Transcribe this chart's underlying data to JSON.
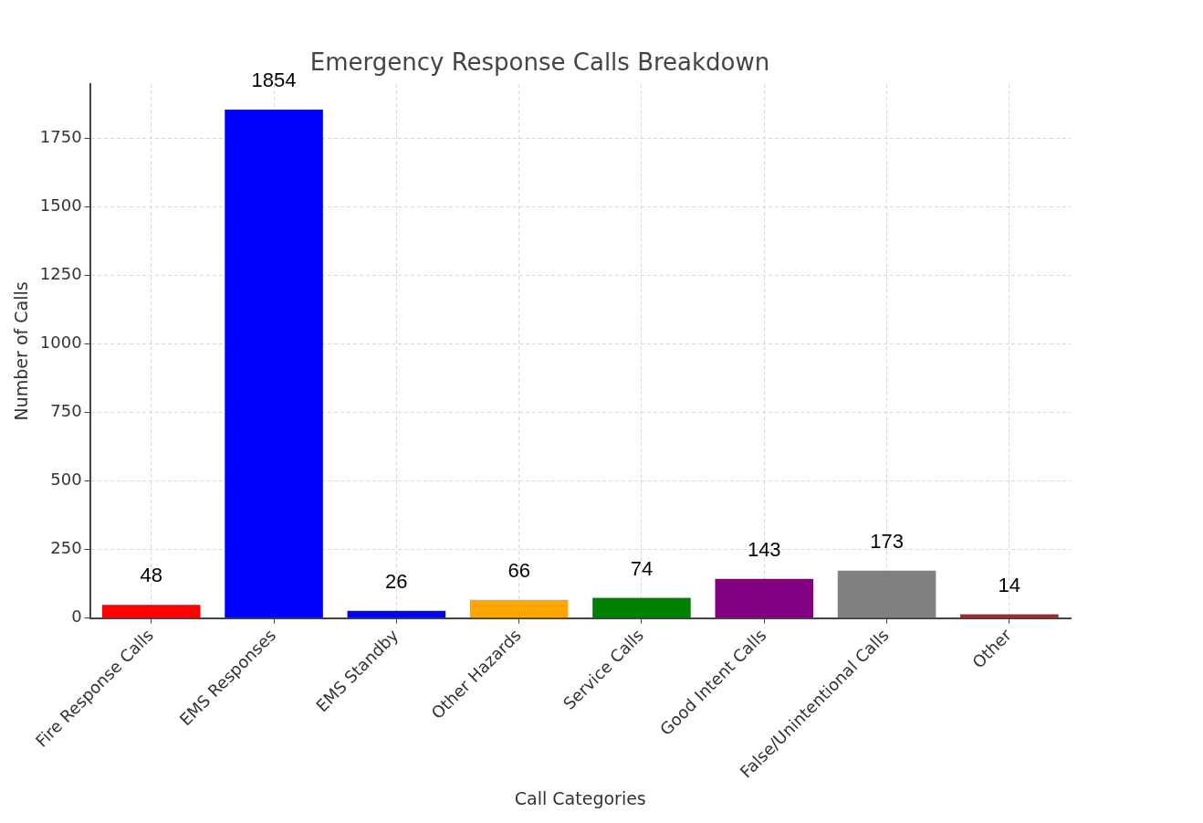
{
  "chart_data": {
    "type": "bar",
    "title": "Emergency Response Calls Breakdown",
    "xlabel": "Call Categories",
    "ylabel": "Number of Calls",
    "categories": [
      "Fire Response Calls",
      "EMS Responses",
      "EMS Standby",
      "Other Hazards",
      "Service Calls",
      "Good Intent Calls",
      "False/Unintentional Calls",
      "Other"
    ],
    "values": [
      48,
      1854,
      26,
      66,
      74,
      143,
      173,
      14
    ],
    "colors": [
      "#ff0000",
      "#0000ff",
      "#0000ff",
      "#ffa500",
      "#008000",
      "#800080",
      "#808080",
      "#a52a2a"
    ],
    "ylim": [
      0,
      1946.7
    ],
    "yticks": [
      0,
      250,
      500,
      750,
      1000,
      1250,
      1500,
      1750
    ],
    "grid": true,
    "data_labels": true
  }
}
